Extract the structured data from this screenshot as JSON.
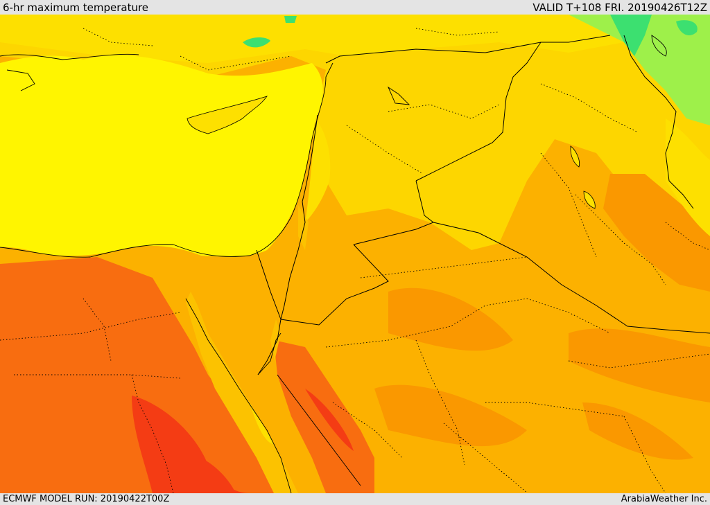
{
  "header": {
    "title": "6-hr maximum temperature",
    "valid_label": "VALID T+108 FRI. 20190426T12Z"
  },
  "footer": {
    "model_run": "ECMWF MODEL RUN: 20190422T00Z",
    "credit": "ArabiaWeather Inc."
  },
  "map": {
    "colors": {
      "sea_yellow": "#fff500",
      "light_yellow": "#fde000",
      "gold": "#fdd600",
      "light_orange": "#fcc200",
      "orange": "#fcb100",
      "dark_orange": "#fa9800",
      "red_orange": "#f86d10",
      "red": "#f43c14",
      "green": "#3ce070",
      "light_green": "#9ef04a",
      "border": "#000000"
    }
  }
}
